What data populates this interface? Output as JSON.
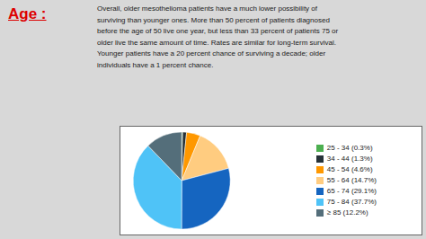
{
  "chart_data": {
    "type": "pie",
    "title": "Age :",
    "subtitle": "Overall, older mesothelioma patients have a much lower possibility of\nsurviving than younger ones. More than 50 percent of patients diagnosed\nbefore the age of 50 live one year, but less than 33 percent of patients 75 or\nolder live the same amount of time. Rates are similar for long-term survival.\nYounger patients have a 20 percent chance of surviving a decade; older\nindividuals have a 1 percent chance.",
    "categories": [
      "25 - 34  (0.3%)",
      "34 - 44  (1.3%)",
      "45 - 54  (4.6%)",
      "55 - 64  (14.7%)",
      "65 - 74  (29.1%)",
      "75 - 84  (37.7%)",
      "≥ 85  (12.2%)"
    ],
    "values": [
      0.3,
      1.3,
      4.6,
      14.7,
      29.1,
      37.7,
      12.2
    ],
    "colors": [
      "#4caf50",
      "#263238",
      "#ff9800",
      "#ffcc80",
      "#1565c0",
      "#4fc3f7",
      "#546e7a"
    ],
    "legend": "right"
  }
}
